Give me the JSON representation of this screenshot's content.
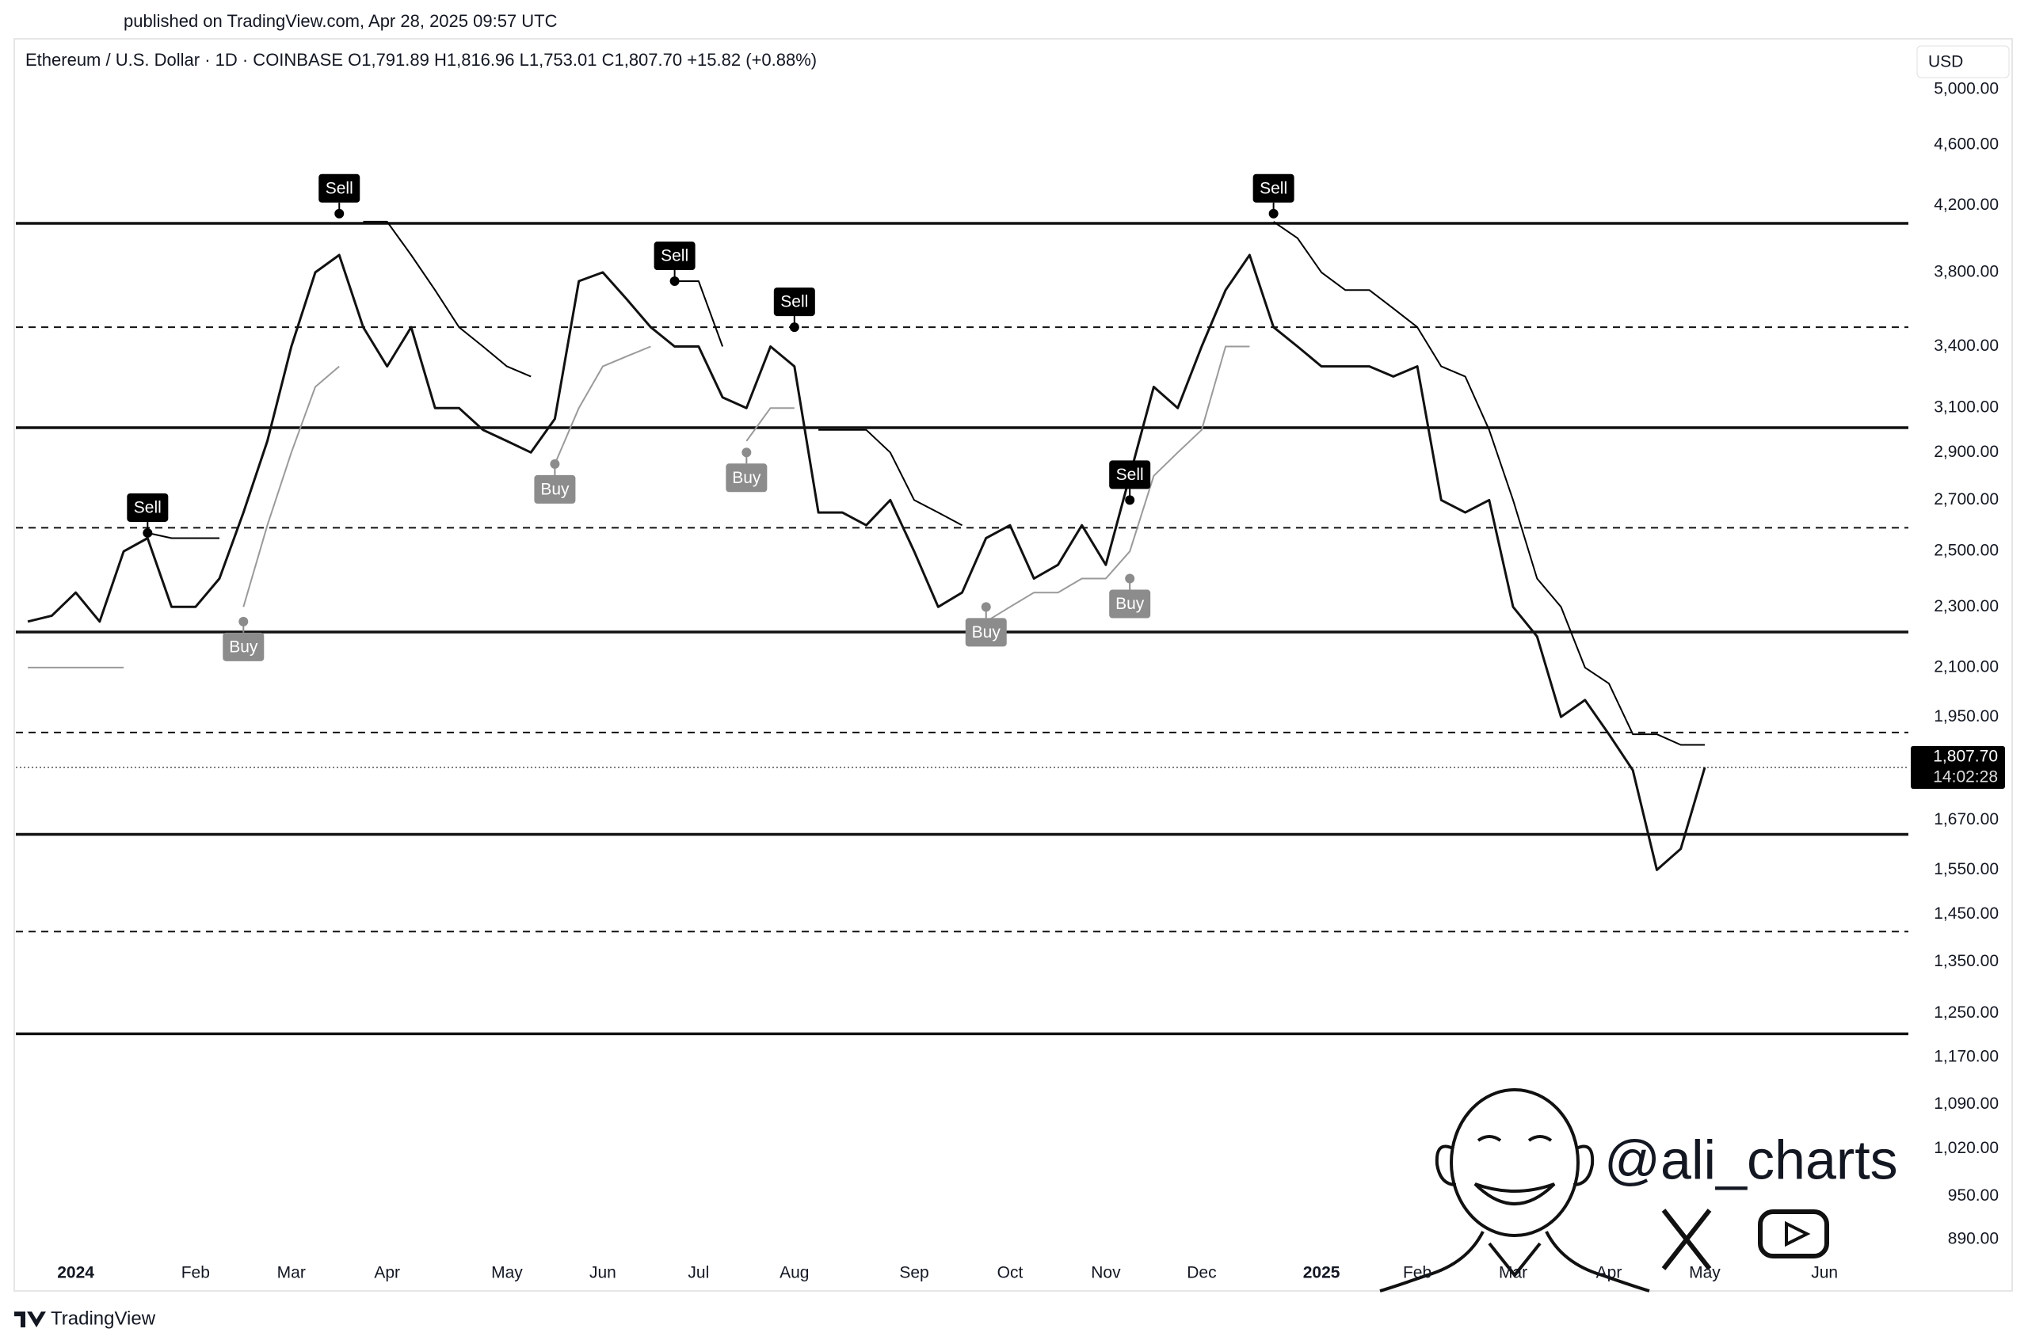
{
  "published": "published on TradingView.com, Apr 28, 2025 09:57 UTC",
  "footer": "TradingView",
  "watermark": "@ali_charts",
  "chart_data": {
    "type": "line",
    "title": "Ethereum / U.S. Dollar · 1D · COINBASE  O1,791.89  H1,816.96  L1,753.01  C1,807.70  +15.82 (+0.88%)",
    "currency": "USD",
    "log_scale": true,
    "grid": false,
    "categories": [
      null,
      null,
      "2024",
      null,
      null,
      null,
      null,
      "Feb",
      null,
      null,
      null,
      "Mar",
      null,
      null,
      null,
      "Apr",
      null,
      null,
      null,
      null,
      "May",
      null,
      null,
      null,
      "Jun",
      null,
      null,
      null,
      "Jul",
      null,
      null,
      null,
      "Aug",
      null,
      null,
      null,
      null,
      "Sep",
      null,
      null,
      null,
      "Oct",
      null,
      null,
      null,
      "Nov",
      null,
      null,
      null,
      "Dec",
      null,
      null,
      null,
      null,
      "2025",
      null,
      null,
      null,
      "Feb",
      null,
      null,
      null,
      "Mar",
      null,
      null,
      null,
      "Apr",
      null,
      null,
      null,
      "May",
      null,
      null,
      null,
      null,
      "Jun",
      null,
      null,
      null
    ],
    "series": [
      {
        "color": "#111111",
        "values": [
          2250,
          2270,
          2350,
          2250,
          2500,
          2550,
          2300,
          2300,
          2400,
          2650,
          2950,
          3400,
          3800,
          3900,
          3500,
          3300,
          3500,
          3100,
          3100,
          3000,
          2950,
          2900,
          3050,
          3750,
          3800,
          3650,
          3500,
          3400,
          3400,
          3150,
          3100,
          3400,
          3300,
          2650,
          2650,
          2600,
          2700,
          2500,
          2300,
          2350,
          2550,
          2600,
          2400,
          2450,
          2600,
          2450,
          2800,
          3200,
          3100,
          3400,
          3700,
          3900,
          3500,
          3400,
          3300,
          3300,
          3300,
          3250,
          3300,
          2700,
          2650,
          2700,
          2300,
          2200,
          1950,
          2000,
          1900,
          1800,
          1550,
          1600,
          1807.7,
          null,
          null,
          null,
          null,
          null,
          null,
          null,
          null
        ]
      },
      {
        "color": "#000000",
        "values": [
          null,
          null,
          null,
          null,
          null,
          2570,
          2550,
          2550,
          2550,
          null,
          null,
          null,
          null,
          null,
          4100,
          4100,
          3900,
          3700,
          3500,
          3400,
          3300,
          3250,
          null,
          null,
          null,
          null,
          null,
          3750,
          3750,
          3400,
          null,
          null,
          null,
          3000,
          3000,
          3000,
          2900,
          2700,
          2650,
          2600,
          null,
          null,
          null,
          null,
          null,
          null,
          null,
          null,
          null,
          null,
          null,
          null,
          4100,
          4000,
          3800,
          3700,
          3700,
          3600,
          3500,
          3300,
          3250,
          3000,
          2700,
          2400,
          2300,
          2100,
          2050,
          1900,
          1900,
          1870,
          1870,
          null,
          null,
          null,
          null,
          null,
          null,
          null,
          null
        ]
      },
      {
        "color": "#9a9a9a",
        "values": [
          2100,
          2100,
          2100,
          2100,
          2100,
          null,
          null,
          null,
          null,
          2300,
          2600,
          2900,
          3200,
          3300,
          null,
          null,
          null,
          null,
          null,
          null,
          null,
          null,
          2850,
          3100,
          3300,
          3350,
          3400,
          null,
          null,
          null,
          2950,
          3100,
          3100,
          null,
          null,
          null,
          null,
          null,
          null,
          null,
          2250,
          2300,
          2350,
          2350,
          2400,
          2400,
          2500,
          2800,
          2900,
          3000,
          3400,
          3400,
          null,
          null,
          null,
          null,
          null,
          null,
          null,
          null,
          null,
          null,
          null,
          null,
          null,
          null,
          null,
          null,
          null,
          null,
          null,
          null,
          null,
          null,
          null,
          null,
          null,
          null,
          null
        ]
      }
    ],
    "signals": [
      {
        "label": "Sell",
        "color": "#000000",
        "values": [
          null,
          null,
          null,
          null,
          null,
          2570,
          null,
          null,
          null,
          null,
          null,
          null,
          null,
          4150,
          null,
          null,
          null,
          null,
          null,
          null,
          null,
          null,
          null,
          null,
          null,
          null,
          null,
          3750,
          null,
          null,
          null,
          null,
          3500,
          null,
          null,
          null,
          null,
          null,
          null,
          null,
          null,
          null,
          null,
          null,
          null,
          null,
          2700,
          null,
          null,
          null,
          null,
          null,
          4150,
          null,
          null,
          null,
          null,
          null,
          null,
          null,
          null,
          null,
          null,
          null,
          null,
          null,
          null,
          null,
          null,
          null,
          null,
          null,
          null,
          null,
          null,
          null,
          null,
          null,
          null
        ]
      },
      {
        "label": "Buy",
        "color": "#8c8c8c",
        "values": [
          null,
          null,
          null,
          null,
          null,
          null,
          null,
          null,
          null,
          2250,
          null,
          null,
          null,
          null,
          null,
          null,
          null,
          null,
          null,
          null,
          null,
          null,
          2850,
          null,
          null,
          null,
          null,
          null,
          null,
          null,
          2900,
          null,
          null,
          null,
          null,
          null,
          null,
          null,
          null,
          null,
          2300,
          null,
          null,
          null,
          null,
          null,
          2400,
          null,
          null,
          null,
          null,
          null,
          null,
          null,
          null,
          null,
          null,
          null,
          null,
          null,
          null,
          null,
          null,
          null,
          null,
          null,
          null,
          null,
          null,
          null,
          null,
          null,
          null,
          null,
          null,
          null,
          null,
          null,
          null
        ]
      }
    ],
    "levels": {
      "solid": [
        4090,
        3010,
        2215,
        1635,
        1212
      ],
      "dashed": [
        3500,
        2590,
        1905,
        1413
      ]
    },
    "last_price": {
      "value": 1807.7,
      "label": "1,807.70"
    },
    "countdown": "14:02:28",
    "ylim": [
      824,
      5395
    ],
    "yticks": [
      {
        "value": 890,
        "label": "890.00"
      },
      {
        "value": 950,
        "label": "950.00"
      },
      {
        "value": 1020,
        "label": "1,020.00"
      },
      {
        "value": 1090,
        "label": "1,090.00"
      },
      {
        "value": 1170,
        "label": "1,170.00"
      },
      {
        "value": 1250,
        "label": "1,250.00"
      },
      {
        "value": 1350,
        "label": "1,350.00"
      },
      {
        "value": 1450,
        "label": "1,450.00"
      },
      {
        "value": 1550,
        "label": "1,550.00"
      },
      {
        "value": 1670,
        "label": "1,670.00"
      },
      {
        "value": 1950,
        "label": "1,950.00"
      },
      {
        "value": 2100,
        "label": "2,100.00"
      },
      {
        "value": 2300,
        "label": "2,300.00"
      },
      {
        "value": 2500,
        "label": "2,500.00"
      },
      {
        "value": 2700,
        "label": "2,700.00"
      },
      {
        "value": 2900,
        "label": "2,900.00"
      },
      {
        "value": 3100,
        "label": "3,100.00"
      },
      {
        "value": 3400,
        "label": "3,400.00"
      },
      {
        "value": 3800,
        "label": "3,800.00"
      },
      {
        "value": 4200,
        "label": "4,200.00"
      },
      {
        "value": 4600,
        "label": "4,600.00"
      },
      {
        "value": 5000,
        "label": "5,000.00"
      }
    ]
  }
}
